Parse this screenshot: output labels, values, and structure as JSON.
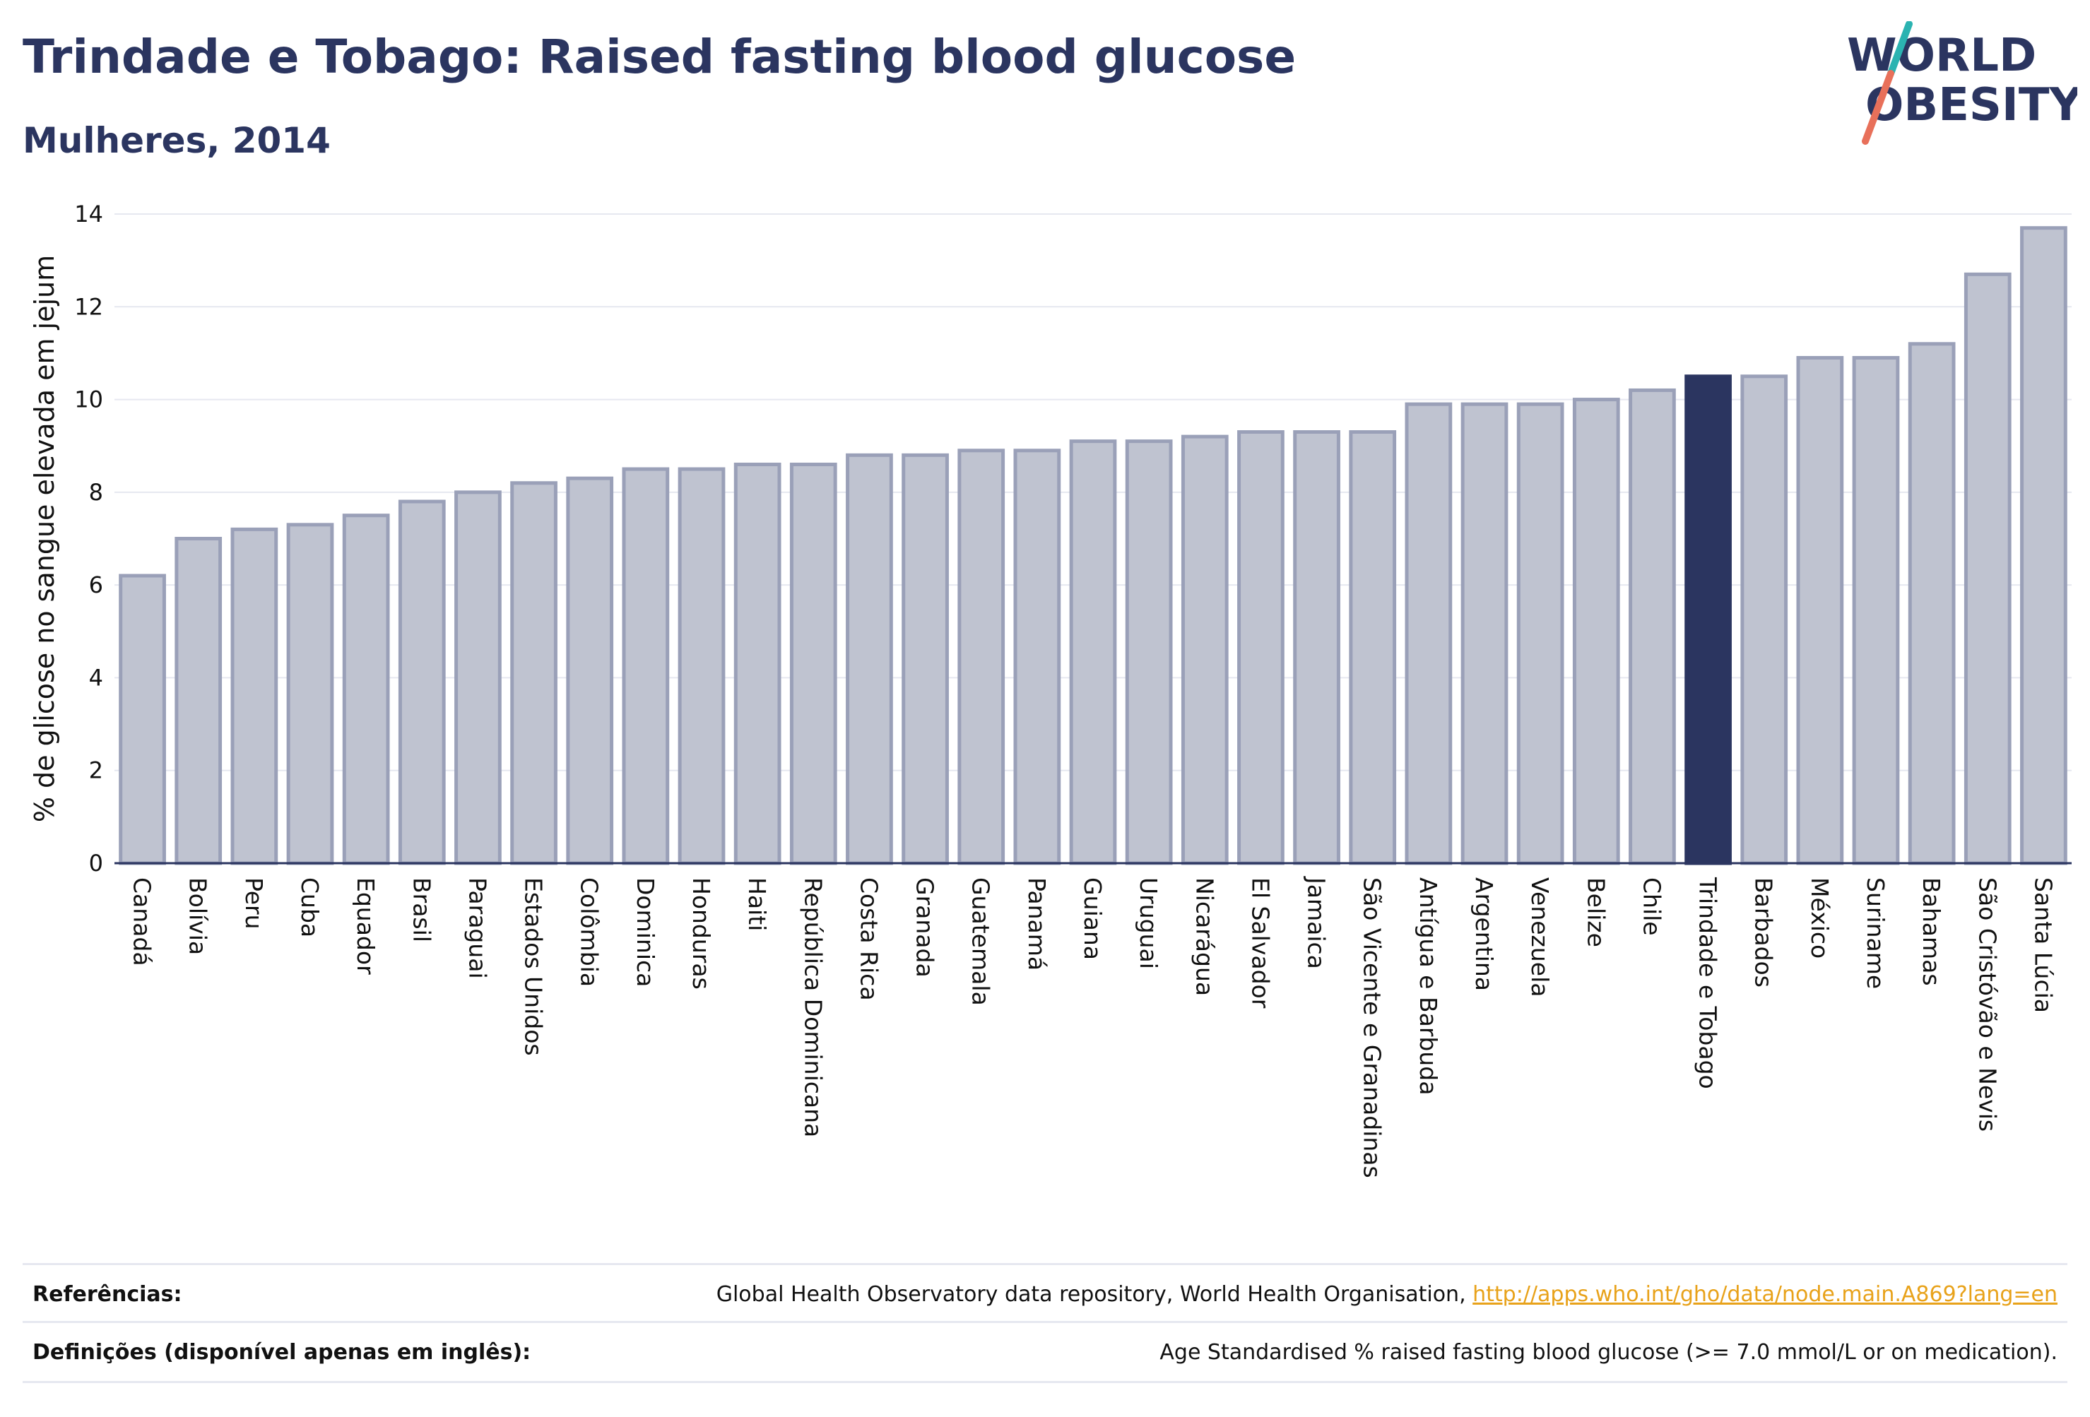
{
  "header": {
    "title": "Trindade e Tobago: Raised fasting blood glucose",
    "subtitle": "Mulheres, 2014"
  },
  "logo": {
    "line1": "WORLD",
    "line2": "OBESITY",
    "slash_colors": [
      "#2bb3b1",
      "#e8705a"
    ],
    "text_color": "#2b3560"
  },
  "chart_data": {
    "type": "bar",
    "ylabel": "% de glicose no sangue elevada em jejum",
    "ylim": [
      0,
      14
    ],
    "yticks": [
      0,
      2,
      4,
      6,
      8,
      10,
      12,
      14
    ],
    "grid": true,
    "highlight_category": "Trindade e Tobago",
    "highlight_color": "#2b3560",
    "bar_color": "#bfc3d0",
    "bar_edge_color": "#9aa0b8",
    "categories": [
      "Canadá",
      "Bolívia",
      "Peru",
      "Cuba",
      "Equador",
      "Brasil",
      "Paraguai",
      "Estados Unidos",
      "Colômbia",
      "Dominica",
      "Honduras",
      "Haiti",
      "República Dominicana",
      "Costa Rica",
      "Granada",
      "Guatemala",
      "Panamá",
      "Guiana",
      "Uruguai",
      "Nicarágua",
      "El Salvador",
      "Jamaica",
      "São Vicente e Granadinas",
      "Antígua e Barbuda",
      "Argentina",
      "Venezuela",
      "Belize",
      "Chile",
      "Trindade e Tobago",
      "Barbados",
      "México",
      "Suriname",
      "Bahamas",
      "São Cristóvão e Nevis",
      "Santa Lúcia"
    ],
    "values": [
      6.2,
      7.0,
      7.2,
      7.3,
      7.5,
      7.8,
      8.0,
      8.2,
      8.3,
      8.5,
      8.5,
      8.6,
      8.6,
      8.8,
      8.8,
      8.9,
      8.9,
      9.1,
      9.1,
      9.2,
      9.3,
      9.3,
      9.3,
      9.9,
      9.9,
      9.9,
      10.0,
      10.2,
      10.5,
      10.5,
      10.9,
      10.9,
      11.2,
      12.7,
      13.7
    ]
  },
  "references": [
    {
      "label": "Referências:",
      "text": "Global Health Observatory data repository, World Health Organisation, ",
      "link": "http://apps.who.int/gho/data/node.main.A869?lang=en"
    },
    {
      "label": "Definições (disponível apenas em inglês):",
      "text": "Age Standardised % raised fasting blood glucose (>= 7.0 mmol/L or on medication).",
      "link": ""
    }
  ]
}
